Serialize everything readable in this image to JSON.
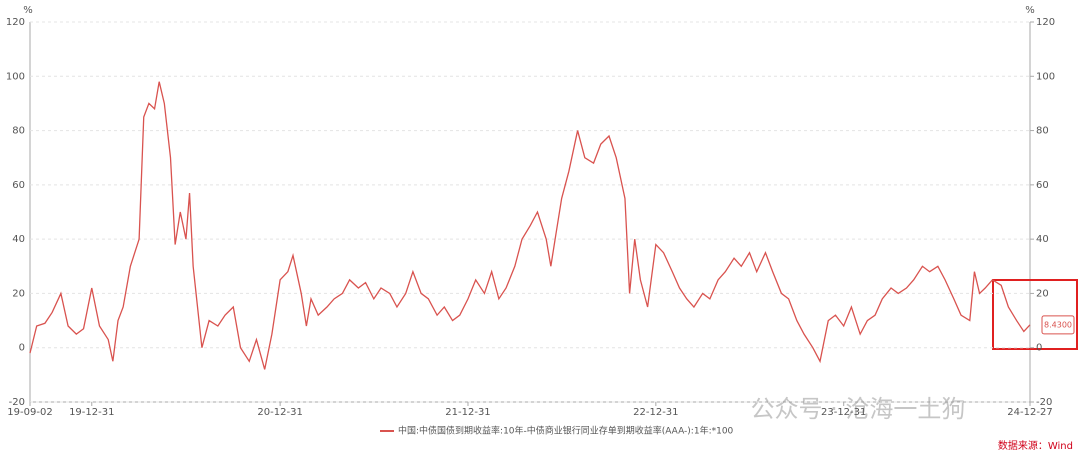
{
  "chart_data": {
    "type": "line",
    "y_unit": "%",
    "y2_unit": "%",
    "x": [
      "19-09-02",
      "19-09-15",
      "19-10-01",
      "19-10-15",
      "19-11-01",
      "19-11-15",
      "19-12-01",
      "19-12-15",
      "19-12-31",
      "20-01-15",
      "20-02-01",
      "20-02-10",
      "20-02-20",
      "20-03-01",
      "20-03-15",
      "20-04-01",
      "20-04-10",
      "20-04-20",
      "20-05-01",
      "20-05-10",
      "20-05-20",
      "20-06-01",
      "20-06-10",
      "20-06-20",
      "20-07-01",
      "20-07-08",
      "20-07-15",
      "20-08-01",
      "20-08-15",
      "20-09-01",
      "20-09-15",
      "20-10-01",
      "20-10-15",
      "20-11-01",
      "20-11-15",
      "20-12-01",
      "20-12-15",
      "20-12-31",
      "21-01-15",
      "21-01-25",
      "21-02-10",
      "21-02-20",
      "21-03-01",
      "21-03-15",
      "21-04-01",
      "21-04-15",
      "21-05-01",
      "21-05-15",
      "21-06-01",
      "21-06-15",
      "21-07-01",
      "21-07-15",
      "21-08-01",
      "21-08-15",
      "21-09-01",
      "21-09-15",
      "21-10-01",
      "21-10-15",
      "21-11-01",
      "21-11-15",
      "21-12-01",
      "21-12-15",
      "21-12-31",
      "22-01-15",
      "22-02-01",
      "22-02-15",
      "22-03-01",
      "22-03-15",
      "22-04-01",
      "22-04-15",
      "22-05-01",
      "22-05-15",
      "22-06-01",
      "22-06-10",
      "22-06-20",
      "22-07-01",
      "22-07-15",
      "22-08-01",
      "22-08-15",
      "22-09-01",
      "22-09-15",
      "22-10-01",
      "22-10-15",
      "22-11-01",
      "22-11-10",
      "22-11-20",
      "22-12-01",
      "22-12-15",
      "22-12-31",
      "23-01-15",
      "23-02-01",
      "23-02-15",
      "23-03-01",
      "23-03-15",
      "23-04-01",
      "23-04-15",
      "23-05-01",
      "23-05-15",
      "23-06-01",
      "23-06-15",
      "23-07-01",
      "23-07-15",
      "23-08-01",
      "23-08-15",
      "23-09-01",
      "23-09-15",
      "23-10-01",
      "23-10-15",
      "23-11-01",
      "23-11-15",
      "23-12-01",
      "23-12-15",
      "23-12-31",
      "24-01-15",
      "24-02-01",
      "24-02-15",
      "24-03-01",
      "24-03-15",
      "24-04-01",
      "24-04-15",
      "24-05-01",
      "24-05-15",
      "24-06-01",
      "24-06-15",
      "24-07-01",
      "24-07-15",
      "24-08-01",
      "24-08-15",
      "24-09-01",
      "24-09-10",
      "24-09-20",
      "24-10-01",
      "24-10-15",
      "24-11-01",
      "24-11-15",
      "24-12-01",
      "24-12-15",
      "24-12-27"
    ],
    "series": [
      {
        "name": "中国:中债国债到期收益率:10年-中债商业银行同业存单到期收益率(AAA-):1年:*100",
        "color": "#d9534f",
        "values": [
          -2,
          8,
          9,
          13,
          20,
          8,
          5,
          7,
          22,
          8,
          3,
          -5,
          10,
          15,
          30,
          40,
          85,
          90,
          88,
          98,
          90,
          70,
          38,
          50,
          40,
          57,
          30,
          0,
          10,
          8,
          12,
          15,
          0,
          -5,
          3,
          -8,
          5,
          25,
          28,
          34,
          20,
          8,
          18,
          12,
          15,
          18,
          20,
          25,
          22,
          24,
          18,
          22,
          20,
          15,
          20,
          28,
          20,
          18,
          12,
          15,
          10,
          12,
          18,
          25,
          20,
          28,
          18,
          22,
          30,
          40,
          45,
          50,
          40,
          30,
          42,
          55,
          65,
          80,
          70,
          68,
          75,
          78,
          70,
          55,
          20,
          40,
          25,
          15,
          38,
          35,
          28,
          22,
          18,
          15,
          20,
          18,
          25,
          28,
          33,
          30,
          35,
          28,
          35,
          28,
          20,
          18,
          10,
          5,
          0,
          -5,
          10,
          12,
          8,
          15,
          5,
          10,
          12,
          18,
          22,
          20,
          22,
          25,
          30,
          28,
          30,
          25,
          18,
          12,
          10,
          28,
          20,
          22,
          25,
          23,
          15,
          10,
          6,
          8.43
        ]
      }
    ],
    "last_value_label": "8.4300",
    "xlim": [
      "19-09-02",
      "24-12-27"
    ],
    "xticks": [
      "19-09-02",
      "19-12-31",
      "20-12-31",
      "21-12-31",
      "22-12-31",
      "23-12-31",
      "24-12-27"
    ],
    "ylim": [
      -20,
      120
    ],
    "yticks": [
      -20,
      0,
      20,
      40,
      60,
      80,
      100,
      120
    ],
    "y2lim": [
      -20,
      120
    ],
    "y2ticks": [
      -20,
      0,
      20,
      40,
      60,
      80,
      100,
      120
    ],
    "grid": true,
    "source": "数据来源：Wind",
    "watermark": "公众号 · 沧海一土狗"
  }
}
